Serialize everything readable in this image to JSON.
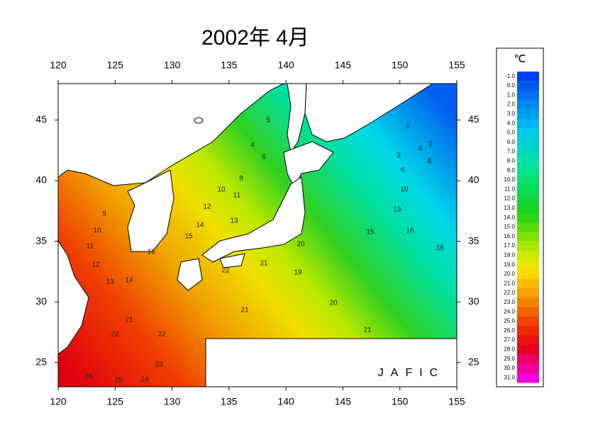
{
  "map": {
    "title": "2002年 4月",
    "credit": "JAFIC",
    "xlim": [
      120,
      155
    ],
    "ylim": [
      23,
      48
    ],
    "xticks": [
      120,
      125,
      130,
      135,
      140,
      145,
      150,
      155
    ],
    "yticks": [
      25,
      30,
      35,
      40,
      45
    ],
    "colorbar": {
      "unit": "℃",
      "levels": [
        {
          "value": -1,
          "label": "-1.0"
        },
        {
          "value": 0,
          "label": "0.0"
        },
        {
          "value": 1,
          "label": "1.0"
        },
        {
          "value": 2,
          "label": "2.0"
        },
        {
          "value": 3,
          "label": "3.0"
        },
        {
          "value": 4,
          "label": "4.0"
        },
        {
          "value": 5,
          "label": "5.0"
        },
        {
          "value": 6,
          "label": "6.0"
        },
        {
          "value": 7,
          "label": "7.0"
        },
        {
          "value": 8,
          "label": "8.0"
        },
        {
          "value": 9,
          "label": "9.0"
        },
        {
          "value": 10,
          "label": "10.0"
        },
        {
          "value": 11,
          "label": "11.0"
        },
        {
          "value": 12,
          "label": "12.0"
        },
        {
          "value": 13,
          "label": "13.0"
        },
        {
          "value": 14,
          "label": "14.0"
        },
        {
          "value": 15,
          "label": "15.0"
        },
        {
          "value": 16,
          "label": "16.0"
        },
        {
          "value": 17,
          "label": "17.0"
        },
        {
          "value": 18,
          "label": "18.0"
        },
        {
          "value": 19,
          "label": "19.0"
        },
        {
          "value": 20,
          "label": "20.0"
        },
        {
          "value": 21,
          "label": "21.0"
        },
        {
          "value": 22,
          "label": "22.0"
        },
        {
          "value": 23,
          "label": "23.0"
        },
        {
          "value": 24,
          "label": "24.0"
        },
        {
          "value": 25,
          "label": "25.0"
        },
        {
          "value": 26,
          "label": "26.0"
        },
        {
          "value": 27,
          "label": "27.0"
        },
        {
          "value": 28,
          "label": "28.0"
        },
        {
          "value": 29,
          "label": "29.0"
        },
        {
          "value": 30,
          "label": "30.0"
        },
        {
          "value": 31,
          "label": "31.0"
        }
      ]
    },
    "contour_labels": [
      5,
      4,
      6,
      8,
      10,
      11,
      12,
      13,
      14,
      15,
      9,
      10,
      11,
      12,
      13,
      14,
      15,
      1,
      2,
      3,
      4,
      6,
      8,
      10,
      13,
      15,
      16,
      18,
      19,
      20,
      20,
      21,
      21,
      22,
      22,
      21,
      22,
      23,
      24,
      25,
      26,
      21
    ]
  }
}
